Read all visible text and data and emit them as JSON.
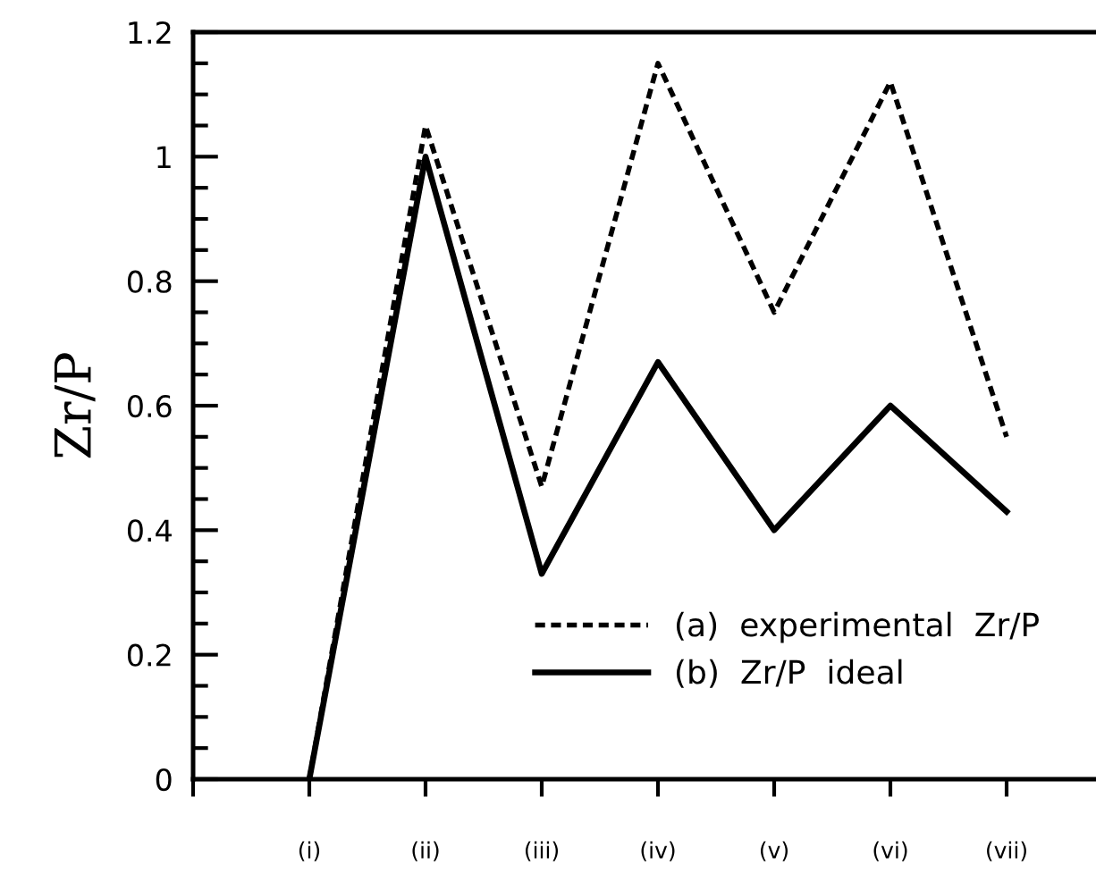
{
  "chart_data": {
    "type": "line",
    "ylabel": "Zr/P",
    "categories": [
      null,
      "(i)",
      "(ii)",
      "(iii)",
      "(iv)",
      "(v)",
      "(vi)",
      "(vii)"
    ],
    "series": [
      {
        "name": "(a)  experimental  Zr/P",
        "color": "#000000",
        "line_style": "dashed",
        "values": [
          null,
          0,
          1.05,
          0.47,
          1.15,
          0.75,
          1.12,
          0.55
        ]
      },
      {
        "name": "(b)  Zr/P  ideal",
        "color": "#000000",
        "line_style": "solid",
        "values": [
          null,
          0,
          1.0,
          0.33,
          0.67,
          0.4,
          0.6,
          0.43
        ]
      }
    ],
    "ylim": [
      0,
      1.2
    ],
    "yticks": [
      0,
      0.2,
      0.4,
      0.6,
      0.8,
      1,
      1.2
    ],
    "grid": false,
    "legend": "bottom right",
    "marker": "none"
  }
}
